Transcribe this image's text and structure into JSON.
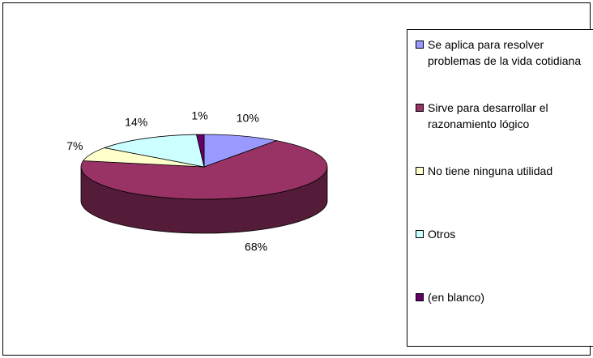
{
  "chart_data": {
    "type": "pie",
    "categories": [
      "Se aplica para resolver problemas de la vida cotidiana",
      "Sirve para desarrollar el razonamiento lógico",
      "No tiene ninguna utilidad",
      "Otros",
      "(en blanco)"
    ],
    "values": [
      10,
      68,
      7,
      14,
      1
    ],
    "value_labels": [
      "10%",
      "68%",
      "7%",
      "14%",
      "1%"
    ],
    "colors": [
      "#9999ff",
      "#993366",
      "#ffffcc",
      "#ccffff",
      "#660066"
    ],
    "legend": "right"
  }
}
